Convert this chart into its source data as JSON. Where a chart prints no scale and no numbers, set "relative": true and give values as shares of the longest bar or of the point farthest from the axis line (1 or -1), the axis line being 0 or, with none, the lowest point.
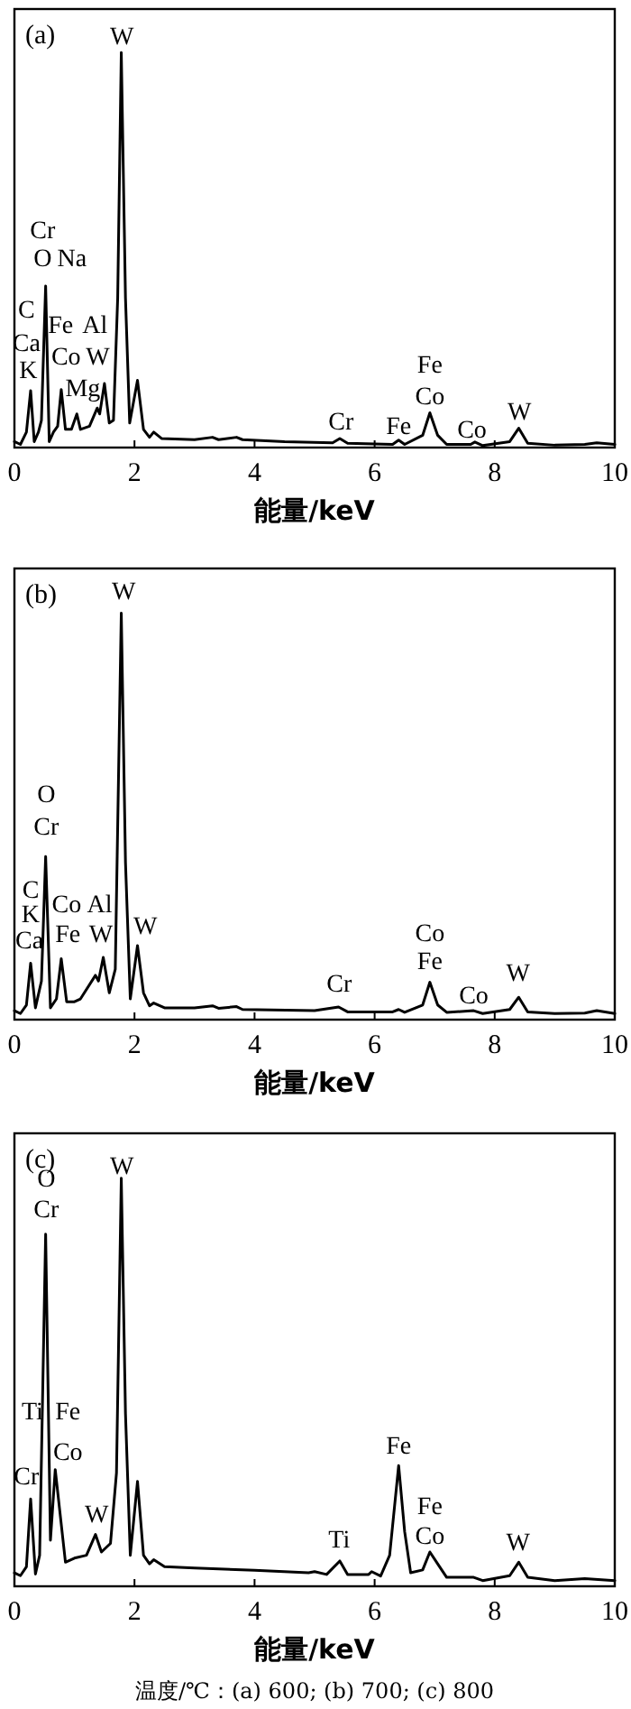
{
  "chart_data": [
    {
      "type": "line",
      "title": "(a)",
      "xlabel": "能量/keV",
      "xlim": [
        0,
        10
      ],
      "xticks": [
        0,
        2,
        4,
        6,
        8,
        10
      ],
      "relative": true,
      "tick_labels": "x",
      "line_style": "solid",
      "series": [
        {
          "color": "#000000",
          "x": [
            0,
            0.1,
            0.2,
            0.27,
            0.33,
            0.4,
            0.45,
            0.52,
            0.58,
            0.65,
            0.72,
            0.78,
            0.85,
            0.95,
            1.04,
            1.1,
            1.25,
            1.38,
            1.42,
            1.5,
            1.58,
            1.65,
            1.72,
            1.78,
            1.85,
            1.92,
            2.05,
            2.15,
            2.25,
            2.32,
            2.45,
            3.0,
            3.3,
            3.4,
            3.7,
            3.8,
            4.5,
            5.3,
            5.42,
            5.55,
            6.3,
            6.4,
            6.5,
            6.8,
            6.92,
            7.05,
            7.2,
            7.6,
            7.67,
            7.8,
            8.25,
            8.4,
            8.55,
            9.0,
            9.5,
            9.7,
            10
          ],
          "values": [
            0.015,
            0.008,
            0.039,
            0.144,
            0.015,
            0.039,
            0.069,
            0.409,
            0.015,
            0.039,
            0.054,
            0.147,
            0.046,
            0.046,
            0.085,
            0.046,
            0.054,
            0.1,
            0.085,
            0.162,
            0.062,
            0.069,
            0.378,
            1,
            0.378,
            0.062,
            0.17,
            0.046,
            0.026,
            0.039,
            0.023,
            0.02,
            0.026,
            0.02,
            0.026,
            0.02,
            0.015,
            0.012,
            0.023,
            0.011,
            0.008,
            0.019,
            0.008,
            0.031,
            0.088,
            0.031,
            0.008,
            0.008,
            0.014,
            0.005,
            0.015,
            0.049,
            0.011,
            0.006,
            0.008,
            0.012,
            0.008
          ]
        }
      ],
      "annotations": [
        "W",
        "Cr",
        "O",
        "Na",
        "C",
        "Fe",
        "Al",
        "Ca",
        "Co",
        "W",
        "K",
        "Mg",
        "Cr",
        "Fe",
        "Fe",
        "Co",
        "Co",
        "W"
      ]
    },
    {
      "type": "line",
      "title": "(b)",
      "xlabel": "能量/keV",
      "xlim": [
        0,
        10
      ],
      "xticks": [
        0,
        2,
        4,
        6,
        8,
        10
      ],
      "relative": true,
      "tick_labels": "x",
      "line_style": "solid",
      "series": [
        {
          "color": "#000000",
          "x": [
            0,
            0.1,
            0.2,
            0.27,
            0.35,
            0.45,
            0.52,
            0.6,
            0.7,
            0.78,
            0.87,
            1.0,
            1.1,
            1.35,
            1.4,
            1.48,
            1.58,
            1.68,
            1.78,
            1.85,
            1.93,
            2.05,
            2.15,
            2.25,
            2.32,
            2.5,
            3.0,
            3.3,
            3.4,
            3.7,
            3.8,
            5.0,
            5.4,
            5.55,
            6.3,
            6.4,
            6.5,
            6.8,
            6.92,
            7.05,
            7.2,
            7.65,
            7.8,
            8.25,
            8.4,
            8.55,
            9.0,
            9.5,
            9.7,
            10
          ],
          "values": [
            0.022,
            0.015,
            0.036,
            0.139,
            0.029,
            0.095,
            0.401,
            0.029,
            0.051,
            0.15,
            0.044,
            0.044,
            0.051,
            0.109,
            0.095,
            0.153,
            0.066,
            0.124,
            1,
            0.387,
            0.051,
            0.182,
            0.066,
            0.034,
            0.041,
            0.029,
            0.029,
            0.034,
            0.028,
            0.032,
            0.025,
            0.022,
            0.031,
            0.019,
            0.019,
            0.025,
            0.018,
            0.036,
            0.092,
            0.036,
            0.018,
            0.022,
            0.015,
            0.025,
            0.055,
            0.019,
            0.015,
            0.016,
            0.022,
            0.015
          ]
        }
      ],
      "annotations": [
        "W",
        "O",
        "Cr",
        "C",
        "Co",
        "Al",
        "K",
        "Fe",
        "W",
        "W",
        "Ca",
        "Cr",
        "Co",
        "Fe",
        "Co",
        "W"
      ]
    },
    {
      "type": "line",
      "title": "(c)",
      "xlabel": "能量/keV",
      "xlim": [
        0,
        10
      ],
      "xticks": [
        0,
        2,
        4,
        6,
        8,
        10
      ],
      "relative": true,
      "tick_labels": "x",
      "line_style": "solid",
      "series": [
        {
          "color": "#000000",
          "x": [
            0,
            0.1,
            0.2,
            0.27,
            0.35,
            0.42,
            0.52,
            0.6,
            0.68,
            0.75,
            0.85,
            1.0,
            1.2,
            1.35,
            1.45,
            1.6,
            1.7,
            1.78,
            1.85,
            1.93,
            2.05,
            2.15,
            2.25,
            2.32,
            2.5,
            3.0,
            4.0,
            4.9,
            5.0,
            5.2,
            5.42,
            5.55,
            5.9,
            5.95,
            6.1,
            6.25,
            6.4,
            6.5,
            6.6,
            6.8,
            6.92,
            7.05,
            7.2,
            7.65,
            7.8,
            8.25,
            8.4,
            8.55,
            9.0,
            9.5,
            10
          ],
          "values": [
            0.033,
            0.026,
            0.048,
            0.214,
            0.03,
            0.076,
            0.863,
            0.113,
            0.286,
            0.192,
            0.059,
            0.069,
            0.076,
            0.127,
            0.084,
            0.105,
            0.278,
            1,
            0.423,
            0.076,
            0.257,
            0.076,
            0.055,
            0.065,
            0.048,
            0.045,
            0.039,
            0.033,
            0.036,
            0.029,
            0.062,
            0.029,
            0.029,
            0.036,
            0.025,
            0.076,
            0.296,
            0.134,
            0.033,
            0.04,
            0.084,
            0.055,
            0.022,
            0.022,
            0.014,
            0.026,
            0.059,
            0.022,
            0.014,
            0.019,
            0.014
          ]
        }
      ],
      "annotations": [
        "W",
        "O",
        "Cr",
        "Ti",
        "Fe",
        "Co",
        "Cr",
        "W",
        "Ti",
        "Fe",
        "Fe",
        "Co",
        "W",
        "温度/℃：(a) 600; (b) 700; (c) 800"
      ]
    }
  ]
}
